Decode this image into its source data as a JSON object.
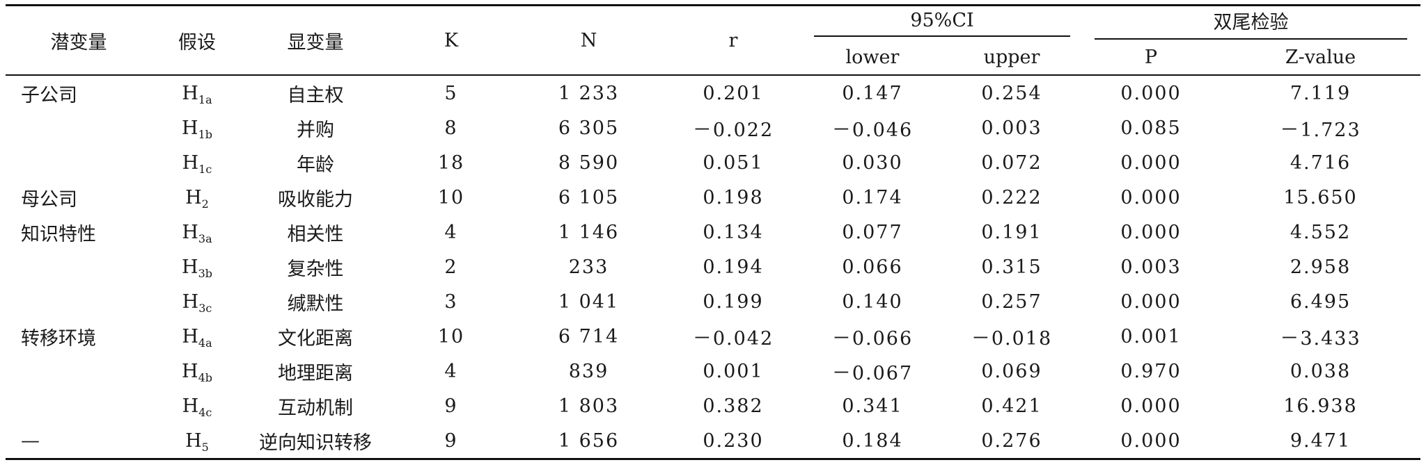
{
  "header": {
    "latent": "潜变量",
    "hypothesis": "假设",
    "manifest": "显变量",
    "k": "K",
    "n": "N",
    "r": "r",
    "ci_group": "95%CI",
    "lower": "lower",
    "upper": "upper",
    "test_group": "双尾检验",
    "p": "P",
    "z": "Z-value"
  },
  "rows": [
    {
      "latent": "子公司",
      "h_base": "H",
      "h_sub": "1a",
      "manifest": "自主权",
      "k": "5",
      "n": "1 233",
      "r": "0.201",
      "lower": "0.147",
      "upper": "0.254",
      "p": "0.000",
      "z": "7.119"
    },
    {
      "latent": "",
      "h_base": "H",
      "h_sub": "1b",
      "manifest": "并购",
      "k": "8",
      "n": "6 305",
      "r": "－0.022",
      "lower": "－0.046",
      "upper": "0.003",
      "p": "0.085",
      "z": "－1.723"
    },
    {
      "latent": "",
      "h_base": "H",
      "h_sub": "1c",
      "manifest": "年龄",
      "k": "18",
      "n": "8 590",
      "r": "0.051",
      "lower": "0.030",
      "upper": "0.072",
      "p": "0.000",
      "z": "4.716"
    },
    {
      "latent": "母公司",
      "h_base": "H",
      "h_sub": "2",
      "manifest": "吸收能力",
      "k": "10",
      "n": "6 105",
      "r": "0.198",
      "lower": "0.174",
      "upper": "0.222",
      "p": "0.000",
      "z": "15.650"
    },
    {
      "latent": "知识特性",
      "h_base": "H",
      "h_sub": "3a",
      "manifest": "相关性",
      "k": "4",
      "n": "1 146",
      "r": "0.134",
      "lower": "0.077",
      "upper": "0.191",
      "p": "0.000",
      "z": "4.552"
    },
    {
      "latent": "",
      "h_base": "H",
      "h_sub": "3b",
      "manifest": "复杂性",
      "k": "2",
      "n": "233",
      "r": "0.194",
      "lower": "0.066",
      "upper": "0.315",
      "p": "0.003",
      "z": "2.958"
    },
    {
      "latent": "",
      "h_base": "H",
      "h_sub": "3c",
      "manifest": "缄默性",
      "k": "3",
      "n": "1 041",
      "r": "0.199",
      "lower": "0.140",
      "upper": "0.257",
      "p": "0.000",
      "z": "6.495"
    },
    {
      "latent": "转移环境",
      "h_base": "H",
      "h_sub": "4a",
      "manifest": "文化距离",
      "k": "10",
      "n": "6 714",
      "r": "－0.042",
      "lower": "－0.066",
      "upper": "－0.018",
      "p": "0.001",
      "z": "－3.433"
    },
    {
      "latent": "",
      "h_base": "H",
      "h_sub": "4b",
      "manifest": "地理距离",
      "k": "4",
      "n": "839",
      "r": "0.001",
      "lower": "－0.067",
      "upper": "0.069",
      "p": "0.970",
      "z": "0.038"
    },
    {
      "latent": "",
      "h_base": "H",
      "h_sub": "4c",
      "manifest": "互动机制",
      "k": "9",
      "n": "1 803",
      "r": "0.382",
      "lower": "0.341",
      "upper": "0.421",
      "p": "0.000",
      "z": "16.938"
    },
    {
      "latent": "—",
      "h_base": "H",
      "h_sub": "5",
      "manifest": "逆向知识转移",
      "k": "9",
      "n": "1 656",
      "r": "0.230",
      "lower": "0.184",
      "upper": "0.276",
      "p": "0.000",
      "z": "9.471"
    }
  ]
}
